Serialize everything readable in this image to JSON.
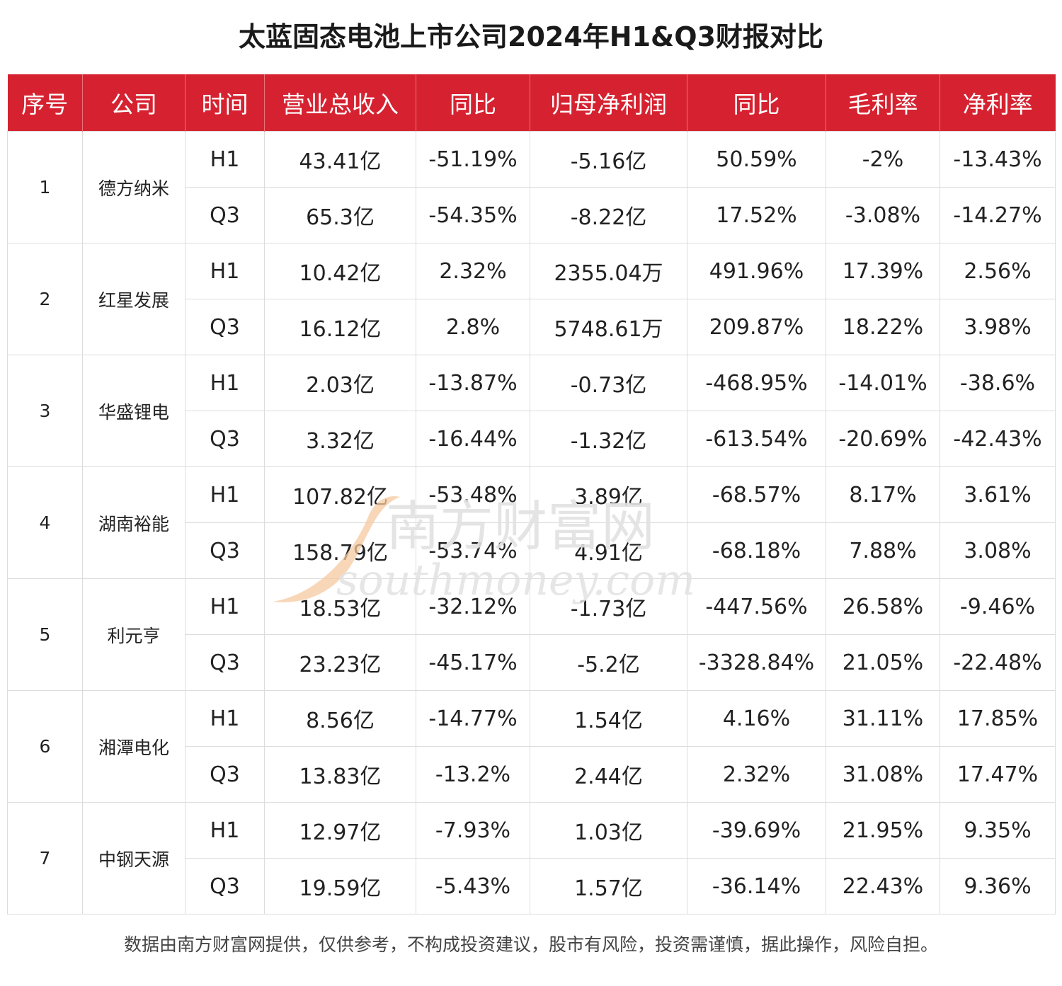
{
  "title": "太蓝固态电池上市公司2024年H1&Q3财报对比",
  "table": {
    "headers": [
      "序号",
      "公司",
      "时间",
      "营业总收入",
      "同比",
      "归母净利润",
      "同比",
      "毛利率",
      "净利率"
    ],
    "companies": [
      {
        "index": "1",
        "name": "德方纳米",
        "rows": [
          [
            "H1",
            "43.41亿",
            "-51.19%",
            "-5.16亿",
            "50.59%",
            "-2%",
            "-13.43%"
          ],
          [
            "Q3",
            "65.3亿",
            "-54.35%",
            "-8.22亿",
            "17.52%",
            "-3.08%",
            "-14.27%"
          ]
        ]
      },
      {
        "index": "2",
        "name": "红星发展",
        "rows": [
          [
            "H1",
            "10.42亿",
            "2.32%",
            "2355.04万",
            "491.96%",
            "17.39%",
            "2.56%"
          ],
          [
            "Q3",
            "16.12亿",
            "2.8%",
            "5748.61万",
            "209.87%",
            "18.22%",
            "3.98%"
          ]
        ]
      },
      {
        "index": "3",
        "name": "华盛锂电",
        "rows": [
          [
            "H1",
            "2.03亿",
            "-13.87%",
            "-0.73亿",
            "-468.95%",
            "-14.01%",
            "-38.6%"
          ],
          [
            "Q3",
            "3.32亿",
            "-16.44%",
            "-1.32亿",
            "-613.54%",
            "-20.69%",
            "-42.43%"
          ]
        ]
      },
      {
        "index": "4",
        "name": "湖南裕能",
        "rows": [
          [
            "H1",
            "107.82亿",
            "-53.48%",
            "3.89亿",
            "-68.57%",
            "8.17%",
            "3.61%"
          ],
          [
            "Q3",
            "158.79亿",
            "-53.74%",
            "4.91亿",
            "-68.18%",
            "7.88%",
            "3.08%"
          ]
        ]
      },
      {
        "index": "5",
        "name": "利元亨",
        "rows": [
          [
            "H1",
            "18.53亿",
            "-32.12%",
            "-1.73亿",
            "-447.56%",
            "26.58%",
            "-9.46%"
          ],
          [
            "Q3",
            "23.23亿",
            "-45.17%",
            "-5.2亿",
            "-3328.84%",
            "21.05%",
            "-22.48%"
          ]
        ]
      },
      {
        "index": "6",
        "name": "湘潭电化",
        "rows": [
          [
            "H1",
            "8.56亿",
            "-14.77%",
            "1.54亿",
            "4.16%",
            "31.11%",
            "17.85%"
          ],
          [
            "Q3",
            "13.83亿",
            "-13.2%",
            "2.44亿",
            "2.32%",
            "31.08%",
            "17.47%"
          ]
        ]
      },
      {
        "index": "7",
        "name": "中钢天源",
        "rows": [
          [
            "H1",
            "12.97亿",
            "-7.93%",
            "1.03亿",
            "-39.69%",
            "21.95%",
            "9.35%"
          ],
          [
            "Q3",
            "19.59亿",
            "-5.43%",
            "1.57亿",
            "-36.14%",
            "22.43%",
            "9.36%"
          ]
        ]
      }
    ]
  },
  "watermark": {
    "cn": "南方财富网",
    "en": "southmoney.com",
    "logo_color": "#f6c9a0",
    "text_color": "#e2e2e2"
  },
  "footer": "数据由南方财富网提供，仅供参考，不构成投资建议，股市有风险，投资需谨慎，据此操作，风险自担。",
  "colors": {
    "header_bg": "#d62230",
    "header_text": "#ffffff",
    "border": "#dcdcdc"
  }
}
